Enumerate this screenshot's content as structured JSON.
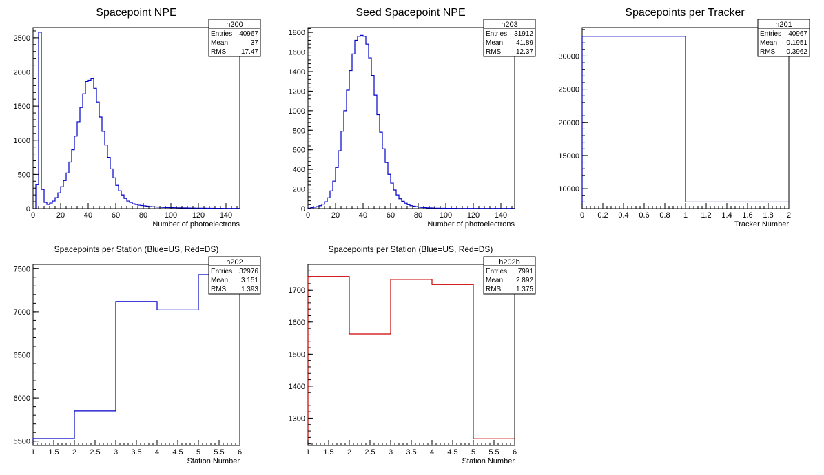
{
  "chart_data": [
    {
      "id": "h200",
      "type": "histogram",
      "title": "Spacepoint NPE",
      "xlabel": "Number of photoelectrons",
      "ylabel": "",
      "xlim": [
        0,
        150
      ],
      "ylim": [
        0,
        2650
      ],
      "xticks": [
        0,
        20,
        40,
        60,
        80,
        100,
        120,
        140
      ],
      "yticks": [
        0,
        500,
        1000,
        1500,
        2000,
        2500
      ],
      "line_color": "#0000cc",
      "stats": {
        "name": "h200",
        "rows": [
          [
            "Entries",
            "40967"
          ],
          [
            "Mean",
            "37"
          ],
          [
            "RMS",
            "17.47"
          ]
        ]
      },
      "bin_width": 2,
      "x_start": 0,
      "values": [
        0,
        350,
        2580,
        280,
        90,
        60,
        80,
        110,
        160,
        230,
        320,
        410,
        520,
        680,
        860,
        1060,
        1270,
        1480,
        1680,
        1860,
        1880,
        1900,
        1760,
        1560,
        1340,
        1130,
        930,
        750,
        580,
        450,
        340,
        260,
        200,
        150,
        110,
        90,
        70,
        60,
        50,
        45,
        40,
        35,
        30,
        28,
        25,
        22,
        20,
        18,
        16,
        15,
        14,
        13,
        12,
        11,
        10,
        10,
        9,
        8,
        8,
        7,
        7,
        6,
        6,
        5,
        5,
        5,
        4,
        4,
        4,
        3,
        3,
        3,
        3,
        3,
        3
      ]
    },
    {
      "id": "h203",
      "type": "histogram",
      "title": "Seed Spacepoint NPE",
      "xlabel": "Number of photoelectrons",
      "ylabel": "",
      "xlim": [
        0,
        150
      ],
      "ylim": [
        0,
        1850
      ],
      "xticks": [
        0,
        20,
        40,
        60,
        80,
        100,
        120,
        140
      ],
      "yticks": [
        0,
        200,
        400,
        600,
        800,
        1000,
        1200,
        1400,
        1600,
        1800
      ],
      "line_color": "#0000cc",
      "stats": {
        "name": "h203",
        "rows": [
          [
            "Entries",
            "31912"
          ],
          [
            "Mean",
            "41.89"
          ],
          [
            "RMS",
            "12.37"
          ]
        ]
      },
      "bin_width": 2,
      "x_start": 0,
      "values": [
        5,
        10,
        15,
        20,
        30,
        45,
        70,
        110,
        180,
        280,
        420,
        590,
        790,
        1000,
        1210,
        1410,
        1580,
        1720,
        1760,
        1770,
        1760,
        1680,
        1540,
        1360,
        1160,
        960,
        780,
        610,
        470,
        350,
        260,
        190,
        140,
        100,
        75,
        55,
        40,
        30,
        25,
        20,
        15,
        12,
        10,
        8,
        7,
        6,
        5,
        5,
        4,
        4,
        3,
        3,
        3,
        3,
        2,
        2,
        2,
        2,
        2,
        2,
        2,
        2,
        2,
        2,
        2,
        2,
        2,
        2,
        2,
        2,
        2,
        2,
        2,
        2,
        2
      ]
    },
    {
      "id": "h201",
      "type": "histogram",
      "title": "Spacepoints per Tracker",
      "xlabel": "Tracker Number",
      "ylabel": "",
      "xlim": [
        0,
        2
      ],
      "ylim": [
        7000,
        34300
      ],
      "xticks": [
        0,
        0.2,
        0.4,
        0.6,
        0.8,
        1,
        1.2,
        1.4,
        1.6,
        1.8,
        2
      ],
      "yticks": [
        10000,
        15000,
        20000,
        25000,
        30000
      ],
      "ytick_labels": [
        "10000",
        "15000",
        "20000",
        "25000",
        "30000"
      ],
      "line_color": "#0000cc",
      "stats": {
        "name": "h201",
        "rows": [
          [
            "Entries",
            "40967"
          ],
          [
            "Mean",
            "0.1951"
          ],
          [
            "RMS",
            "0.3962"
          ]
        ]
      },
      "bin_width": 1,
      "x_start": 0,
      "values": [
        32976,
        7991
      ]
    },
    {
      "id": "h202",
      "type": "histogram",
      "title": "Spacepoints per Station (Blue=US, Red=DS)",
      "xlabel": "Station Number",
      "ylabel": "",
      "xlim": [
        1,
        6
      ],
      "ylim": [
        5450,
        7550
      ],
      "xticks": [
        1,
        1.5,
        2,
        2.5,
        3,
        3.5,
        4,
        4.5,
        5,
        5.5,
        6
      ],
      "yticks": [
        5500,
        6000,
        6500,
        7000,
        7500
      ],
      "line_color": "#0000cc",
      "stats": {
        "name": "h202",
        "rows": [
          [
            "Entries",
            "32976"
          ],
          [
            "Mean",
            "3.151"
          ],
          [
            "RMS",
            "1.393"
          ]
        ]
      },
      "bin_width": 1,
      "x_start": 1,
      "values": [
        5530,
        5850,
        7120,
        7020,
        7430
      ]
    },
    {
      "id": "h202b",
      "type": "histogram",
      "title": "Spacepoints per Station (Blue=US, Red=DS)",
      "xlabel": "Station Number",
      "ylabel": "",
      "xlim": [
        1,
        6
      ],
      "ylim": [
        1215,
        1780
      ],
      "xticks": [
        1,
        1.5,
        2,
        2.5,
        3,
        3.5,
        4,
        4.5,
        5,
        5.5,
        6
      ],
      "yticks": [
        1300,
        1400,
        1500,
        1600,
        1700
      ],
      "line_color": "#cc0000",
      "stats": {
        "name": "h202b",
        "rows": [
          [
            "Entries",
            "7991"
          ],
          [
            "Mean",
            "2.892"
          ],
          [
            "RMS",
            "1.375"
          ]
        ]
      },
      "bin_width": 1,
      "x_start": 1,
      "values": [
        1742,
        1563,
        1733,
        1717,
        1236
      ]
    }
  ]
}
